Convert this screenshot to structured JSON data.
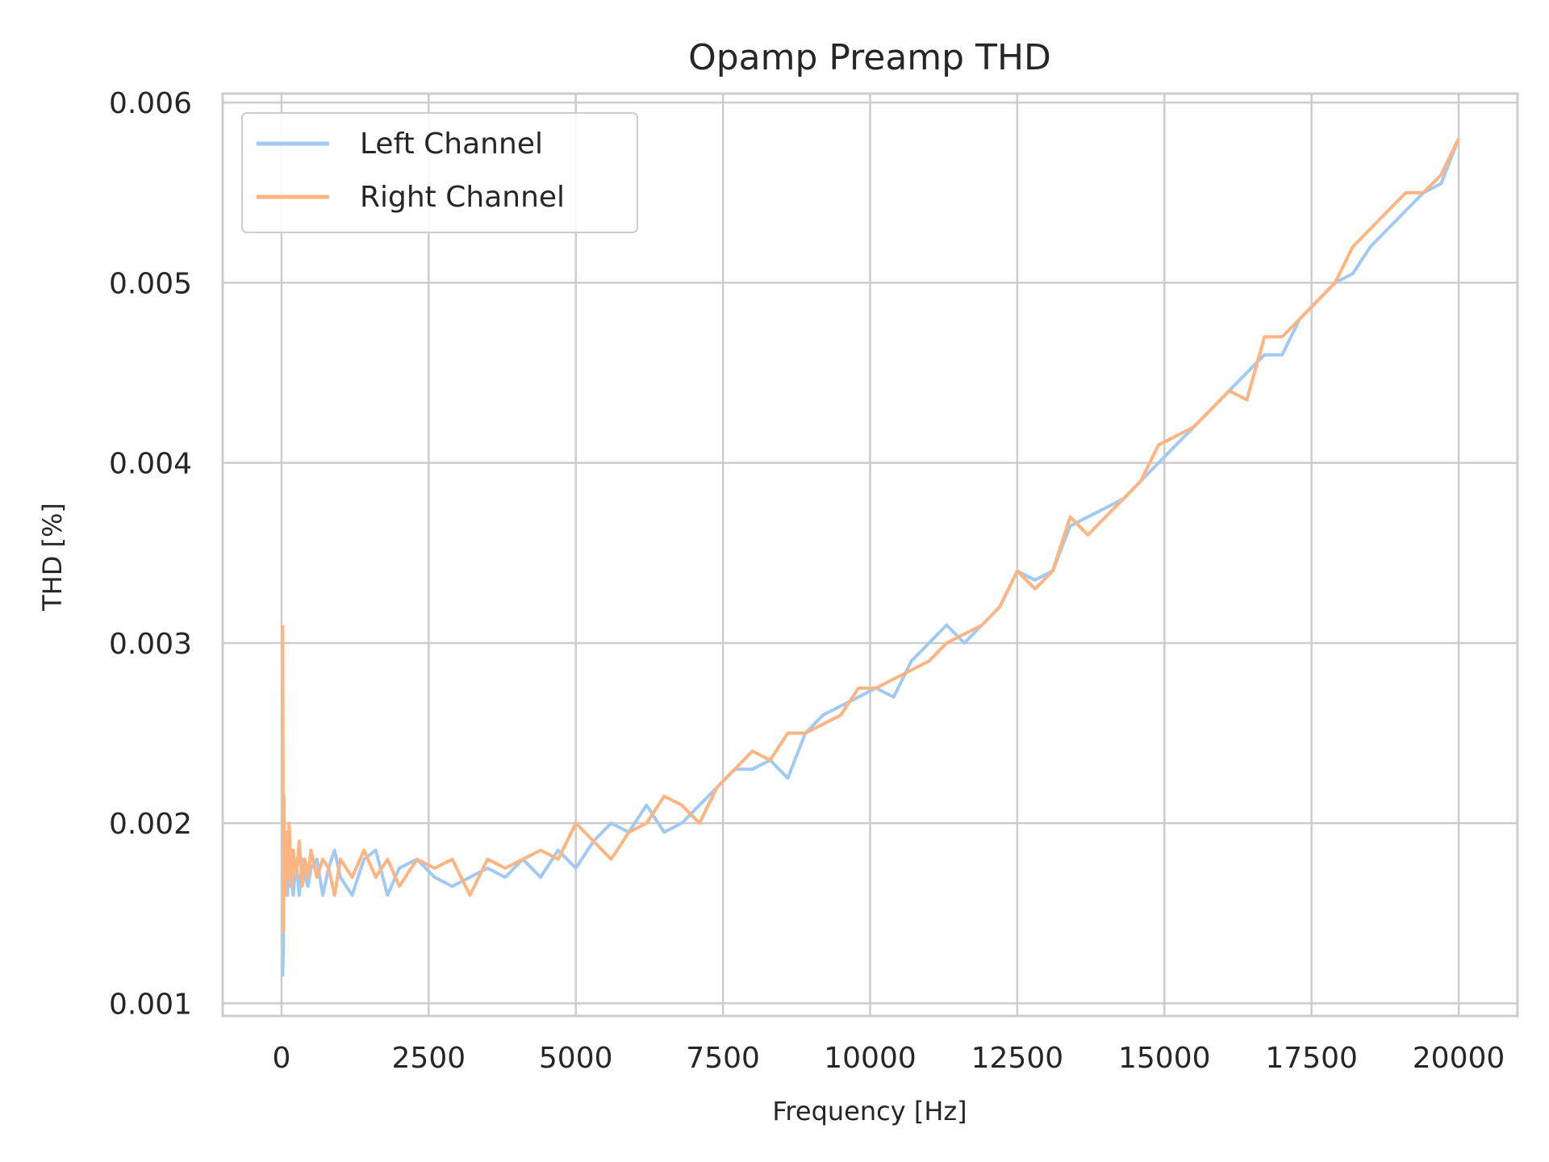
{
  "chart_data": {
    "type": "line",
    "title": "Opamp Preamp THD",
    "xlabel": "Frequency [Hz]",
    "ylabel": "THD [%]",
    "xlim": [
      -1000,
      21000
    ],
    "ylim": [
      0.00093,
      0.00605
    ],
    "xticks": [
      0,
      2500,
      5000,
      7500,
      10000,
      12500,
      15000,
      17500,
      20000
    ],
    "xtick_labels": [
      "0",
      "2500",
      "5000",
      "7500",
      "10000",
      "12500",
      "15000",
      "17500",
      "20000"
    ],
    "yticks": [
      0.001,
      0.002,
      0.003,
      0.004,
      0.005,
      0.006
    ],
    "ytick_labels": [
      "0.001",
      "0.002",
      "0.003",
      "0.004",
      "0.005",
      "0.006"
    ],
    "grid": true,
    "legend_position": "top-left",
    "series": [
      {
        "name": "Left Channel",
        "color": "#a1c9f4",
        "x": [
          20,
          30,
          40,
          60,
          80,
          100,
          130,
          160,
          200,
          250,
          300,
          350,
          400,
          450,
          500,
          600,
          700,
          800,
          900,
          1000,
          1200,
          1400,
          1600,
          1800,
          2000,
          2300,
          2600,
          2900,
          3200,
          3500,
          3800,
          4100,
          4400,
          4700,
          5000,
          5300,
          5600,
          5900,
          6200,
          6500,
          6800,
          7100,
          7400,
          7700,
          8000,
          8300,
          8600,
          8900,
          9200,
          9500,
          9800,
          10100,
          10400,
          10700,
          11000,
          11300,
          11600,
          11900,
          12200,
          12500,
          12800,
          13100,
          13400,
          13700,
          14000,
          14300,
          14600,
          14900,
          15200,
          15500,
          15800,
          16100,
          16400,
          16700,
          17000,
          17300,
          17600,
          17900,
          18200,
          18500,
          18800,
          19100,
          19400,
          19700,
          20000
        ],
        "y": [
          0.00115,
          0.0013,
          0.00195,
          0.0017,
          0.00175,
          0.0016,
          0.00185,
          0.0017,
          0.0016,
          0.0018,
          0.0016,
          0.0018,
          0.0017,
          0.00165,
          0.00175,
          0.0018,
          0.0016,
          0.00175,
          0.00185,
          0.0017,
          0.0016,
          0.0018,
          0.00185,
          0.0016,
          0.00175,
          0.0018,
          0.0017,
          0.00165,
          0.0017,
          0.00175,
          0.0017,
          0.0018,
          0.0017,
          0.00185,
          0.00175,
          0.0019,
          0.002,
          0.00195,
          0.0021,
          0.00195,
          0.002,
          0.0021,
          0.0022,
          0.0023,
          0.0023,
          0.00235,
          0.00225,
          0.0025,
          0.0026,
          0.00265,
          0.0027,
          0.00275,
          0.0027,
          0.0029,
          0.003,
          0.0031,
          0.003,
          0.0031,
          0.0032,
          0.0034,
          0.00335,
          0.0034,
          0.00365,
          0.0037,
          0.00375,
          0.0038,
          0.0039,
          0.004,
          0.0041,
          0.0042,
          0.0043,
          0.0044,
          0.0045,
          0.0046,
          0.0046,
          0.0048,
          0.0049,
          0.005,
          0.00505,
          0.0052,
          0.0053,
          0.0054,
          0.0055,
          0.00555,
          0.0058
        ]
      },
      {
        "name": "Right Channel",
        "color": "#ffb482",
        "x": [
          20,
          30,
          40,
          60,
          80,
          100,
          130,
          160,
          200,
          250,
          300,
          350,
          400,
          450,
          500,
          600,
          700,
          800,
          900,
          1000,
          1200,
          1400,
          1600,
          1800,
          2000,
          2300,
          2600,
          2900,
          3200,
          3500,
          3800,
          4100,
          4400,
          4700,
          5000,
          5300,
          5600,
          5900,
          6200,
          6500,
          6800,
          7100,
          7400,
          7700,
          8000,
          8300,
          8600,
          8900,
          9200,
          9500,
          9800,
          10100,
          10400,
          10700,
          11000,
          11300,
          11600,
          11900,
          12200,
          12500,
          12800,
          13100,
          13400,
          13700,
          14000,
          14300,
          14600,
          14900,
          15200,
          15500,
          15800,
          16100,
          16400,
          16700,
          17000,
          17300,
          17600,
          17900,
          18200,
          18500,
          18800,
          19100,
          19400,
          19700,
          20000
        ],
        "y": [
          0.0031,
          0.0014,
          0.00215,
          0.0016,
          0.00195,
          0.0017,
          0.002,
          0.00165,
          0.00185,
          0.0017,
          0.0019,
          0.00165,
          0.0018,
          0.0017,
          0.00185,
          0.0017,
          0.0018,
          0.00175,
          0.0016,
          0.0018,
          0.0017,
          0.00185,
          0.0017,
          0.0018,
          0.00165,
          0.0018,
          0.00175,
          0.0018,
          0.0016,
          0.0018,
          0.00175,
          0.0018,
          0.00185,
          0.0018,
          0.002,
          0.0019,
          0.0018,
          0.00195,
          0.002,
          0.00215,
          0.0021,
          0.002,
          0.0022,
          0.0023,
          0.0024,
          0.00235,
          0.0025,
          0.0025,
          0.00255,
          0.0026,
          0.00275,
          0.00275,
          0.0028,
          0.00285,
          0.0029,
          0.003,
          0.00305,
          0.0031,
          0.0032,
          0.0034,
          0.0033,
          0.0034,
          0.0037,
          0.0036,
          0.0037,
          0.0038,
          0.0039,
          0.0041,
          0.00415,
          0.0042,
          0.0043,
          0.0044,
          0.00435,
          0.0047,
          0.0047,
          0.0048,
          0.0049,
          0.005,
          0.0052,
          0.0053,
          0.0054,
          0.0055,
          0.0055,
          0.0056,
          0.0058
        ]
      }
    ]
  }
}
